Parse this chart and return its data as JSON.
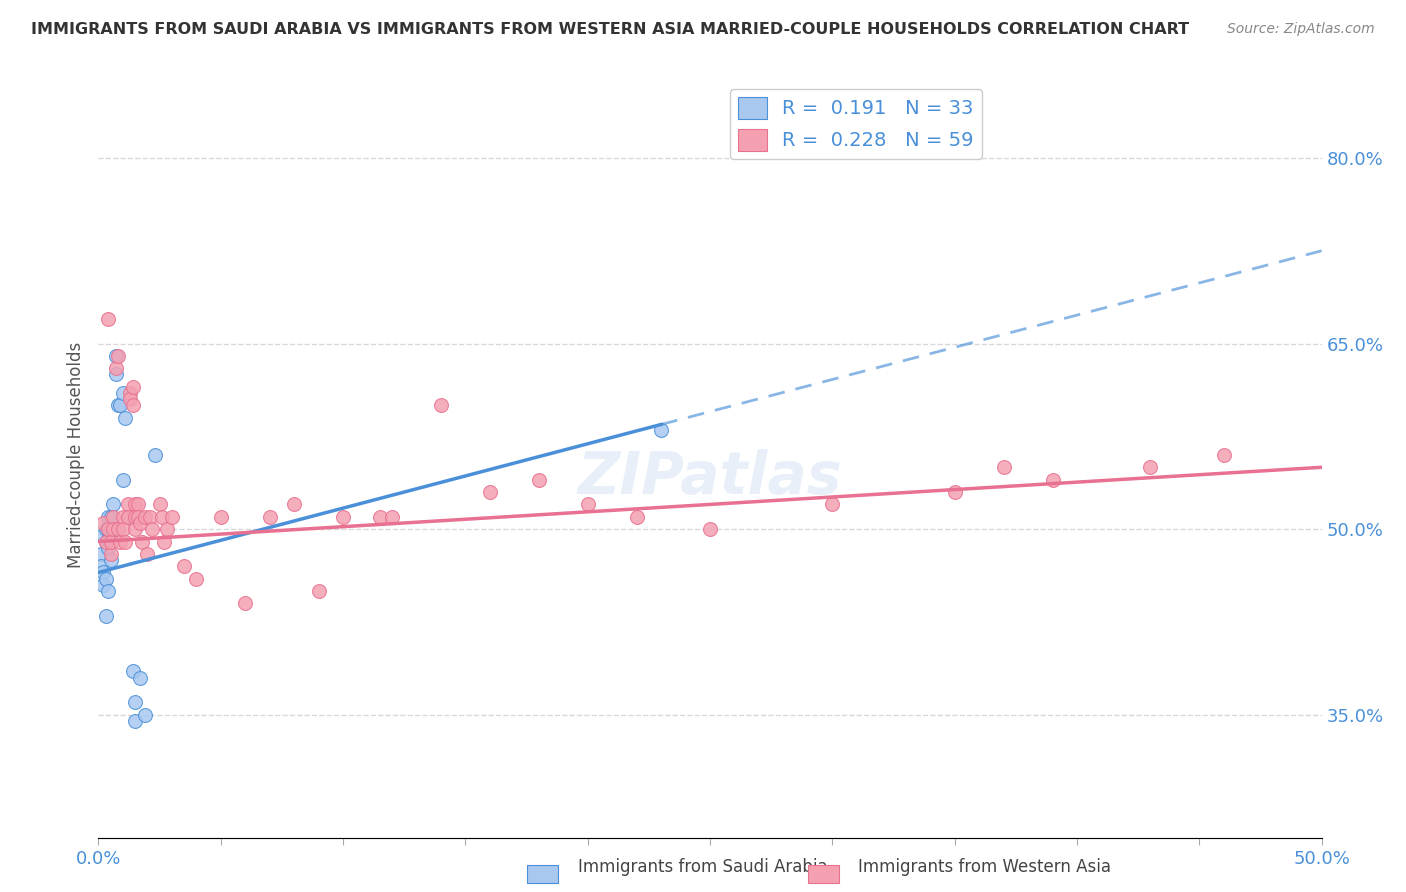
{
  "title": "IMMIGRANTS FROM SAUDI ARABIA VS IMMIGRANTS FROM WESTERN ASIA MARRIED-COUPLE HOUSEHOLDS CORRELATION CHART",
  "source": "Source: ZipAtlas.com",
  "xlabel": "",
  "ylabel": "Married-couple Households",
  "xlim": [
    0,
    0.5
  ],
  "ylim": [
    0.25,
    0.87
  ],
  "yticks_right": [
    0.35,
    0.5,
    0.65,
    0.8
  ],
  "ytick_right_labels": [
    "35.0%",
    "50.0%",
    "65.0%",
    "80.0%"
  ],
  "xticks": [
    0.0,
    0.05,
    0.1,
    0.15,
    0.2,
    0.25,
    0.3,
    0.35,
    0.4,
    0.45,
    0.5
  ],
  "xtick_labels": [
    "0.0%",
    "",
    "",
    "",
    "",
    "",
    "",
    "",
    "",
    "",
    "50.0%"
  ],
  "saudi_R": 0.191,
  "saudi_N": 33,
  "western_R": 0.228,
  "western_N": 59,
  "saudi_color": "#a8c8f0",
  "western_color": "#f4a0b0",
  "saudi_line_color": "#4a90d9",
  "western_line_color": "#e87090",
  "watermark": "ZIPatlas",
  "saudi_x": [
    0.001,
    0.001,
    0.002,
    0.002,
    0.002,
    0.003,
    0.003,
    0.003,
    0.003,
    0.004,
    0.004,
    0.004,
    0.004,
    0.005,
    0.005,
    0.005,
    0.006,
    0.006,
    0.007,
    0.007,
    0.008,
    0.009,
    0.01,
    0.01,
    0.011,
    0.012,
    0.014,
    0.015,
    0.015,
    0.017,
    0.019,
    0.023,
    0.23
  ],
  "saudi_y": [
    0.48,
    0.47,
    0.495,
    0.465,
    0.455,
    0.5,
    0.49,
    0.46,
    0.43,
    0.51,
    0.5,
    0.485,
    0.45,
    0.51,
    0.495,
    0.475,
    0.52,
    0.5,
    0.625,
    0.64,
    0.6,
    0.6,
    0.54,
    0.61,
    0.59,
    0.51,
    0.385,
    0.36,
    0.345,
    0.38,
    0.35,
    0.56,
    0.58
  ],
  "western_x": [
    0.002,
    0.003,
    0.004,
    0.004,
    0.005,
    0.005,
    0.006,
    0.006,
    0.007,
    0.008,
    0.008,
    0.009,
    0.01,
    0.01,
    0.011,
    0.012,
    0.012,
    0.013,
    0.013,
    0.014,
    0.014,
    0.015,
    0.015,
    0.015,
    0.016,
    0.016,
    0.017,
    0.018,
    0.019,
    0.02,
    0.021,
    0.022,
    0.025,
    0.026,
    0.027,
    0.028,
    0.03,
    0.035,
    0.04,
    0.05,
    0.06,
    0.07,
    0.08,
    0.09,
    0.1,
    0.115,
    0.12,
    0.14,
    0.16,
    0.18,
    0.2,
    0.22,
    0.25,
    0.3,
    0.35,
    0.37,
    0.39,
    0.43,
    0.46
  ],
  "western_y": [
    0.505,
    0.49,
    0.67,
    0.5,
    0.48,
    0.49,
    0.51,
    0.5,
    0.63,
    0.64,
    0.5,
    0.49,
    0.51,
    0.5,
    0.49,
    0.52,
    0.51,
    0.61,
    0.605,
    0.615,
    0.6,
    0.52,
    0.51,
    0.5,
    0.52,
    0.51,
    0.505,
    0.49,
    0.51,
    0.48,
    0.51,
    0.5,
    0.52,
    0.51,
    0.49,
    0.5,
    0.51,
    0.47,
    0.46,
    0.51,
    0.44,
    0.51,
    0.52,
    0.45,
    0.51,
    0.51,
    0.51,
    0.6,
    0.53,
    0.54,
    0.52,
    0.51,
    0.5,
    0.52,
    0.53,
    0.55,
    0.54,
    0.55,
    0.56
  ],
  "background_color": "#ffffff",
  "grid_color": "#d8d8d8",
  "saudi_line_intercept": 0.465,
  "saudi_line_slope": 0.52,
  "western_line_intercept": 0.49,
  "western_line_slope": 0.12
}
